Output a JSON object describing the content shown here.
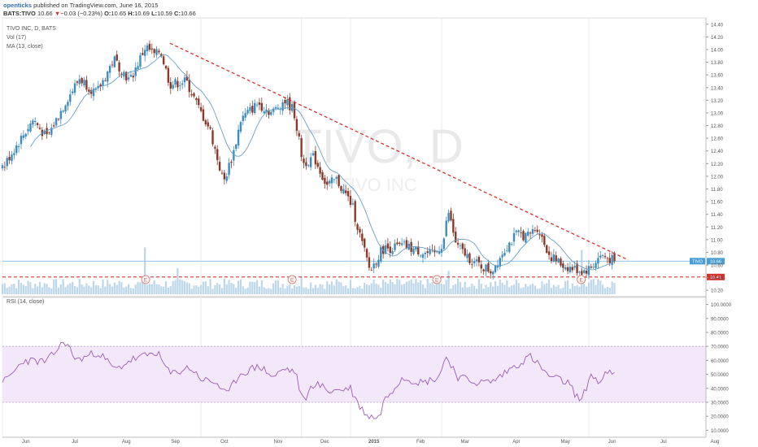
{
  "header": {
    "author": "openticks",
    "published": " published on TradingView.com, June 16, 2015",
    "symbol": "BATS:TIVO",
    "last": "10.66",
    "change_arrow": "▼",
    "change": "−0.03 (−0.23%)",
    "o_label": "O:",
    "o": "10.65",
    "h_label": "H:",
    "h": "10.69",
    "l_label": "L:",
    "l": "10.59",
    "c_label": "C:",
    "c": "10.66"
  },
  "legend": {
    "title": "TIVO INC, D, BATS",
    "vol": "Vol (17)",
    "ma": "MA (13, close)",
    "rsi": "RSI (14, close)"
  },
  "watermark": {
    "symbol": "TIVO, D",
    "name": "TIVO INC"
  },
  "colors": {
    "up": "#3e8dbf",
    "down": "#8b3a2a",
    "ma": "#6aa0c8",
    "trendline": "#d9332f",
    "volume": "#bcd6ea",
    "rsi_line": "#9b5cb9",
    "rsi_band": "#f3e8fa",
    "last_price_tag": "#4a9ed6",
    "support_tag": "#d9332f"
  },
  "chart_data": [
    {
      "type": "candlestick",
      "title": "TIVO INC, D, BATS",
      "x_ticks": [
        "Jun",
        "Jul",
        "Aug",
        "Sep",
        "Oct",
        "Nov",
        "Dec",
        "2015",
        "Feb",
        "Mar",
        "Apr",
        "May",
        "Jun",
        "Jul",
        "Aug"
      ],
      "y_ticks": [
        "14.40",
        "14.20",
        "14.00",
        "13.80",
        "13.60",
        "13.40",
        "13.20",
        "13.00",
        "12.80",
        "12.60",
        "12.40",
        "12.20",
        "12.00",
        "11.80",
        "11.60",
        "11.40",
        "11.20",
        "11.00",
        "10.80",
        "10.60",
        "10.40",
        "10.20"
      ],
      "ylim": [
        10.1,
        14.5
      ],
      "month_anchors": [
        [
          "2014-06-01",
          0
        ],
        [
          "2014-07-01",
          21
        ],
        [
          "2014-08-01",
          43
        ],
        [
          "2014-09-01",
          64
        ],
        [
          "2014-10-01",
          85
        ],
        [
          "2014-11-01",
          108
        ],
        [
          "2014-12-01",
          128
        ],
        [
          "2015-01-01",
          149
        ],
        [
          "2015-02-01",
          169
        ],
        [
          "2015-03-01",
          188
        ],
        [
          "2015-04-01",
          210
        ],
        [
          "2015-05-01",
          231
        ],
        [
          "2015-06-01",
          251
        ],
        [
          "2015-07-01",
          273
        ],
        [
          "2015-08-01",
          295
        ]
      ],
      "price_path": [
        [
          "2014-05-19",
          12.3
        ],
        [
          "2014-05-28",
          11.9
        ],
        [
          "2014-06-05",
          12.3
        ],
        [
          "2014-06-20",
          12.9
        ],
        [
          "2014-06-28",
          12.6
        ],
        [
          "2014-07-10",
          13.2
        ],
        [
          "2014-07-18",
          13.55
        ],
        [
          "2014-07-28",
          13.3
        ],
        [
          "2014-08-08",
          13.85
        ],
        [
          "2014-08-18",
          13.5
        ],
        [
          "2014-08-28",
          14.05
        ],
        [
          "2014-09-03",
          13.9
        ],
        [
          "2014-09-06",
          14.0
        ],
        [
          "2014-09-12",
          13.45
        ],
        [
          "2014-09-22",
          13.5
        ],
        [
          "2014-09-30",
          13.05
        ],
        [
          "2014-10-06",
          12.75
        ],
        [
          "2014-10-14",
          11.9
        ],
        [
          "2014-10-20",
          12.4
        ],
        [
          "2014-10-24",
          12.9
        ],
        [
          "2014-11-03",
          13.15
        ],
        [
          "2014-11-12",
          13.0
        ],
        [
          "2014-11-20",
          13.2
        ],
        [
          "2014-11-26",
          13.05
        ],
        [
          "2014-12-02",
          12.2
        ],
        [
          "2014-12-09",
          12.3
        ],
        [
          "2014-12-17",
          11.85
        ],
        [
          "2014-12-23",
          11.95
        ],
        [
          "2015-01-02",
          11.55
        ],
        [
          "2015-01-08",
          11.0
        ],
        [
          "2015-01-14",
          10.5
        ],
        [
          "2015-01-22",
          10.85
        ],
        [
          "2015-02-05",
          10.9
        ],
        [
          "2015-02-17",
          10.8
        ],
        [
          "2015-02-24",
          10.75
        ],
        [
          "2015-03-02",
          10.95
        ],
        [
          "2015-03-05",
          11.45
        ],
        [
          "2015-03-10",
          10.9
        ],
        [
          "2015-03-20",
          10.65
        ],
        [
          "2015-03-31",
          10.5
        ],
        [
          "2015-04-08",
          10.85
        ],
        [
          "2015-04-16",
          11.1
        ],
        [
          "2015-04-22",
          11.05
        ],
        [
          "2015-04-28",
          11.2
        ],
        [
          "2015-05-06",
          10.75
        ],
        [
          "2015-05-14",
          10.6
        ],
        [
          "2015-05-20",
          10.55
        ],
        [
          "2015-05-28",
          10.5
        ],
        [
          "2015-06-02",
          10.55
        ],
        [
          "2015-06-08",
          10.75
        ],
        [
          "2015-06-16",
          10.66
        ]
      ],
      "last_price": 10.66,
      "last_price_label": "TIVO",
      "last_price_value": "10.66",
      "support_level": 10.41,
      "support_label": "10.41",
      "trendline": {
        "from": [
          "2014-09-12",
          14.1
        ],
        "to": [
          "2015-06-24",
          10.68
        ]
      },
      "earnings_markers": {
        "label": "E",
        "dates": [
          "2014-05-22",
          "2014-08-28",
          "2014-11-25",
          "2015-02-26",
          "2015-05-27"
        ]
      },
      "volume_spikes": [
        [
          "2014-08-28",
          0.9
        ],
        [
          "2014-09-16",
          0.5
        ],
        [
          "2014-12-01",
          0.35
        ],
        [
          "2015-03-05",
          0.45
        ],
        [
          "2015-05-28",
          0.85
        ]
      ]
    },
    {
      "type": "line",
      "title": "RSI (14, close)",
      "y_ticks": [
        "100.0000",
        "90.0000",
        "80.0000",
        "70.0000",
        "60.0000",
        "50.0000",
        "40.0000",
        "30.0000",
        "20.0000",
        "10.0000"
      ],
      "ylim": [
        5,
        105
      ],
      "band": [
        30,
        70
      ],
      "path": [
        [
          "2014-05-19",
          56
        ],
        [
          "2014-06-03",
          45
        ],
        [
          "2014-06-14",
          60
        ],
        [
          "2014-06-28",
          59
        ],
        [
          "2014-07-09",
          74
        ],
        [
          "2014-07-16",
          60
        ],
        [
          "2014-07-29",
          66
        ],
        [
          "2014-08-09",
          53
        ],
        [
          "2014-08-18",
          60
        ],
        [
          "2014-08-27",
          63
        ],
        [
          "2014-09-04",
          66
        ],
        [
          "2014-09-12",
          50
        ],
        [
          "2014-09-24",
          55
        ],
        [
          "2014-10-02",
          46
        ],
        [
          "2014-10-10",
          44
        ],
        [
          "2014-10-16",
          35
        ],
        [
          "2014-10-23",
          50
        ],
        [
          "2014-11-04",
          56
        ],
        [
          "2014-11-13",
          48
        ],
        [
          "2014-11-20",
          54
        ],
        [
          "2014-11-27",
          52
        ],
        [
          "2014-12-02",
          30
        ],
        [
          "2014-12-09",
          44
        ],
        [
          "2014-12-19",
          38
        ],
        [
          "2015-01-01",
          40
        ],
        [
          "2015-01-07",
          27
        ],
        [
          "2015-01-13",
          20
        ],
        [
          "2015-01-20",
          19
        ],
        [
          "2015-01-23",
          31
        ],
        [
          "2015-02-04",
          48
        ],
        [
          "2015-02-17",
          44
        ],
        [
          "2015-02-27",
          48
        ],
        [
          "2015-03-04",
          63
        ],
        [
          "2015-03-11",
          48
        ],
        [
          "2015-03-23",
          44
        ],
        [
          "2015-04-01",
          45
        ],
        [
          "2015-04-13",
          55
        ],
        [
          "2015-04-24",
          63
        ],
        [
          "2015-05-05",
          49
        ],
        [
          "2015-05-18",
          44
        ],
        [
          "2015-05-27",
          30
        ],
        [
          "2015-06-02",
          50
        ],
        [
          "2015-06-08",
          44
        ],
        [
          "2015-06-12",
          52
        ],
        [
          "2015-06-16",
          49
        ]
      ]
    }
  ]
}
